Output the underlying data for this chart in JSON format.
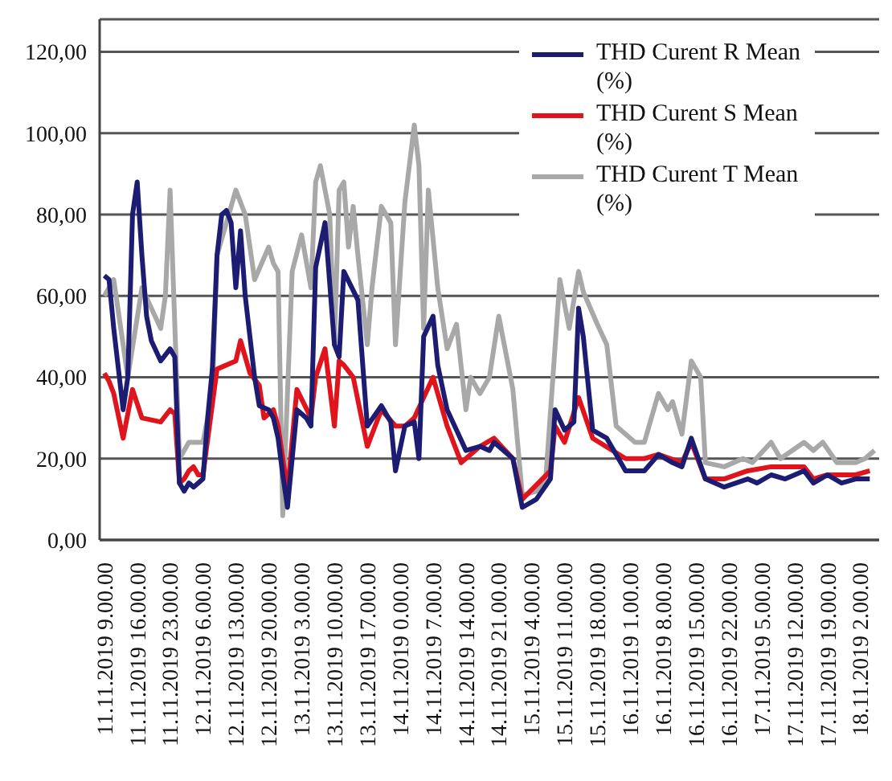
{
  "chart_data": {
    "type": "line",
    "xlim": [
      "2019-11-11T08:00",
      "2019-11-18T06:00"
    ],
    "ylim": [
      0,
      128
    ],
    "yticks": [
      {
        "value": 0,
        "label": "0,00"
      },
      {
        "value": 20,
        "label": "20,00"
      },
      {
        "value": 40,
        "label": "40,00"
      },
      {
        "value": 60,
        "label": "60,00"
      },
      {
        "value": 80,
        "label": "80,00"
      },
      {
        "value": 100,
        "label": "100,00"
      },
      {
        "value": 120,
        "label": "120,00"
      }
    ],
    "xticks": [
      {
        "value": "2019-11-11T09:00",
        "label": "11.11.2019 9.00.00"
      },
      {
        "value": "2019-11-11T16:00",
        "label": "11.11.2019 16.00.00"
      },
      {
        "value": "2019-11-11T23:00",
        "label": "11.11.2019 23.00.00"
      },
      {
        "value": "2019-11-12T06:00",
        "label": "12.11.2019 6.00.00"
      },
      {
        "value": "2019-11-12T13:00",
        "label": "12.11.2019 13.00.00"
      },
      {
        "value": "2019-11-12T20:00",
        "label": "12.11.2019 20.00.00"
      },
      {
        "value": "2019-11-13T03:00",
        "label": "13.11.2019 3.00.00"
      },
      {
        "value": "2019-11-13T10:00",
        "label": "13.11.2019 10.00.00"
      },
      {
        "value": "2019-11-13T17:00",
        "label": "13.11.2019 17.00.00"
      },
      {
        "value": "2019-11-14T00:00",
        "label": "14.11.2019 0.00.00"
      },
      {
        "value": "2019-11-14T07:00",
        "label": "14.11.2019 7.00.00"
      },
      {
        "value": "2019-11-14T14:00",
        "label": "14.11.2019 14.00.00"
      },
      {
        "value": "2019-11-14T21:00",
        "label": "14.11.2019 21.00.00"
      },
      {
        "value": "2019-11-15T04:00",
        "label": "15.11.2019 4.00.00"
      },
      {
        "value": "2019-11-15T11:00",
        "label": "15.11.2019 11.00.00"
      },
      {
        "value": "2019-11-15T18:00",
        "label": "15.11.2019 18.00.00"
      },
      {
        "value": "2019-11-16T01:00",
        "label": "16.11.2019 1.00.00"
      },
      {
        "value": "2019-11-16T08:00",
        "label": "16.11.2019 8.00.00"
      },
      {
        "value": "2019-11-16T15:00",
        "label": "16.11.2019 15.00.00"
      },
      {
        "value": "2019-11-16T22:00",
        "label": "16.11.2019 22.00.00"
      },
      {
        "value": "2019-11-17T05:00",
        "label": "17.11.2019 5.00.00"
      },
      {
        "value": "2019-11-17T12:00",
        "label": "17.11.2019 12.00.00"
      },
      {
        "value": "2019-11-17T19:00",
        "label": "17.11.2019 19.00.00"
      },
      {
        "value": "2019-11-18T02:00",
        "label": "18.11.2019 2.00.00"
      }
    ],
    "grid": "y",
    "legend": "top right",
    "series": [
      {
        "name": "THD Curent R Mean (%)",
        "color": "#1c1c72",
        "x": [
          "2019-11-11T09:00",
          "2019-11-11T10:00",
          "2019-11-11T11:00",
          "2019-11-11T13:00",
          "2019-11-11T14:00",
          "2019-11-11T15:00",
          "2019-11-11T16:00",
          "2019-11-11T17:00",
          "2019-11-11T18:00",
          "2019-11-11T19:00",
          "2019-11-11T21:00",
          "2019-11-11T23:00",
          "2019-11-12T00:00",
          "2019-11-12T01:00",
          "2019-11-12T02:00",
          "2019-11-12T03:00",
          "2019-11-12T04:00",
          "2019-11-12T05:00",
          "2019-11-12T06:00",
          "2019-11-12T07:00",
          "2019-11-12T08:00",
          "2019-11-12T09:00",
          "2019-11-12T10:00",
          "2019-11-12T11:00",
          "2019-11-12T12:00",
          "2019-11-12T13:00",
          "2019-11-12T14:00",
          "2019-11-12T15:00",
          "2019-11-12T16:00",
          "2019-11-12T17:00",
          "2019-11-12T18:00",
          "2019-11-12T20:00",
          "2019-11-12T21:00",
          "2019-11-12T22:00",
          "2019-11-12T23:00",
          "2019-11-13T00:00",
          "2019-11-13T01:00",
          "2019-11-13T02:00",
          "2019-11-13T04:00",
          "2019-11-13T05:00",
          "2019-11-13T06:00",
          "2019-11-13T08:00",
          "2019-11-13T10:00",
          "2019-11-13T11:00",
          "2019-11-13T12:00",
          "2019-11-13T15:00",
          "2019-11-13T17:00",
          "2019-11-13T20:00",
          "2019-11-13T22:00",
          "2019-11-13T23:00",
          "2019-11-14T01:00",
          "2019-11-14T03:00",
          "2019-11-14T04:00",
          "2019-11-14T05:00",
          "2019-11-14T07:00",
          "2019-11-14T08:00",
          "2019-11-14T10:00",
          "2019-11-14T12:00",
          "2019-11-14T14:00",
          "2019-11-14T17:00",
          "2019-11-14T19:00",
          "2019-11-14T20:00",
          "2019-11-15T00:00",
          "2019-11-15T02:00",
          "2019-11-15T05:00",
          "2019-11-15T08:00",
          "2019-11-15T09:00",
          "2019-11-15T11:00",
          "2019-11-15T13:00",
          "2019-11-15T14:00",
          "2019-11-15T15:00",
          "2019-11-15T17:00",
          "2019-11-15T20:00",
          "2019-11-16T00:00",
          "2019-11-16T04:00",
          "2019-11-16T07:00",
          "2019-11-16T10:00",
          "2019-11-16T12:00",
          "2019-11-16T14:00",
          "2019-11-16T17:00",
          "2019-11-16T21:00",
          "2019-11-17T02:00",
          "2019-11-17T04:00",
          "2019-11-17T07:00",
          "2019-11-17T10:00",
          "2019-11-17T14:00",
          "2019-11-17T16:00",
          "2019-11-17T19:00",
          "2019-11-17T22:00",
          "2019-11-18T01:00",
          "2019-11-18T04:00"
        ],
        "values": [
          65,
          64,
          52,
          32,
          40,
          80,
          88,
          70,
          55,
          49,
          44,
          47,
          45,
          14,
          12,
          14,
          13,
          14,
          15,
          30,
          42,
          70,
          80,
          81,
          78,
          62,
          76,
          60,
          50,
          40,
          33,
          32,
          30,
          25,
          16,
          8,
          20,
          32,
          30,
          28,
          67,
          78,
          48,
          45,
          66,
          59,
          28,
          33,
          29,
          17,
          28,
          29,
          20,
          50,
          55,
          43,
          32,
          27,
          22,
          23,
          22,
          24,
          20,
          8,
          10,
          15,
          32,
          27,
          29,
          57,
          50,
          27,
          25,
          17,
          17,
          21,
          19,
          18,
          25,
          15,
          13,
          15,
          14,
          16,
          15,
          17,
          14,
          16,
          14,
          15,
          15
        ]
      },
      {
        "name": "THD Curent S Mean (%)",
        "color": "#e0141c",
        "x": [
          "2019-11-11T09:00",
          "2019-11-11T10:00",
          "2019-11-11T11:00",
          "2019-11-11T13:00",
          "2019-11-11T15:00",
          "2019-11-11T17:00",
          "2019-11-11T21:00",
          "2019-11-11T23:00",
          "2019-11-12T00:00",
          "2019-11-12T01:00",
          "2019-11-12T02:00",
          "2019-11-12T03:00",
          "2019-11-12T04:00",
          "2019-11-12T05:00",
          "2019-11-12T06:00",
          "2019-11-12T09:00",
          "2019-11-12T13:00",
          "2019-11-12T14:00",
          "2019-11-12T15:00",
          "2019-11-12T16:00",
          "2019-11-12T18:00",
          "2019-11-12T19:00",
          "2019-11-12T21:00",
          "2019-11-12T22:00",
          "2019-11-13T00:00",
          "2019-11-13T02:00",
          "2019-11-13T05:00",
          "2019-11-13T06:00",
          "2019-11-13T08:00",
          "2019-11-13T10:00",
          "2019-11-13T11:00",
          "2019-11-13T12:00",
          "2019-11-13T14:00",
          "2019-11-13T17:00",
          "2019-11-13T20:00",
          "2019-11-13T23:00",
          "2019-11-14T01:00",
          "2019-11-14T03:00",
          "2019-11-14T07:00",
          "2019-11-14T10:00",
          "2019-11-14T13:00",
          "2019-11-14T17:00",
          "2019-11-14T20:00",
          "2019-11-15T00:00",
          "2019-11-15T02:00",
          "2019-11-15T08:00",
          "2019-11-15T09:00",
          "2019-11-15T11:00",
          "2019-11-15T14:00",
          "2019-11-15T17:00",
          "2019-11-16T00:00",
          "2019-11-16T04:00",
          "2019-11-16T07:00",
          "2019-11-16T12:00",
          "2019-11-16T14:00",
          "2019-11-16T17:00",
          "2019-11-16T21:00",
          "2019-11-17T02:00",
          "2019-11-17T07:00",
          "2019-11-17T14:00",
          "2019-11-17T16:00",
          "2019-11-17T19:00",
          "2019-11-18T01:00",
          "2019-11-18T04:00"
        ],
        "values": [
          41,
          39,
          36,
          25,
          37,
          30,
          29,
          32,
          31,
          14,
          15,
          17,
          18,
          16,
          16,
          42,
          44,
          49,
          45,
          41,
          38,
          30,
          32,
          28,
          12,
          37,
          30,
          40,
          47,
          28,
          44,
          43,
          40,
          23,
          32,
          28,
          28,
          30,
          40,
          28,
          19,
          23,
          25,
          20,
          10,
          17,
          28,
          24,
          35,
          25,
          20,
          20,
          21,
          19,
          24,
          15,
          15,
          17,
          18,
          18,
          15,
          16,
          16,
          17
        ]
      },
      {
        "name": "THD Curent T Mean (%)",
        "color": "#a8a8a8",
        "x": [
          "2019-11-11T09:00",
          "2019-11-11T11:00",
          "2019-11-11T14:00",
          "2019-11-11T17:00",
          "2019-11-11T21:00",
          "2019-11-11T22:00",
          "2019-11-11T23:00",
          "2019-11-12T01:00",
          "2019-11-12T03:00",
          "2019-11-12T06:00",
          "2019-11-12T08:00",
          "2019-11-12T09:00",
          "2019-11-12T13:00",
          "2019-11-12T15:00",
          "2019-11-12T17:00",
          "2019-11-12T20:00",
          "2019-11-12T21:00",
          "2019-11-12T22:00",
          "2019-11-12T23:00",
          "2019-11-13T01:00",
          "2019-11-13T03:00",
          "2019-11-13T05:00",
          "2019-11-13T06:00",
          "2019-11-13T07:00",
          "2019-11-13T09:00",
          "2019-11-13T10:00",
          "2019-11-13T11:00",
          "2019-11-13T12:00",
          "2019-11-13T13:00",
          "2019-11-13T14:00",
          "2019-11-13T15:00",
          "2019-11-13T17:00",
          "2019-11-13T18:00",
          "2019-11-13T20:00",
          "2019-11-13T22:00",
          "2019-11-13T23:00",
          "2019-11-14T01:00",
          "2019-11-14T03:00",
          "2019-11-14T04:00",
          "2019-11-14T05:00",
          "2019-11-14T06:00",
          "2019-11-14T08:00",
          "2019-11-14T10:00",
          "2019-11-14T12:00",
          "2019-11-14T14:00",
          "2019-11-14T15:00",
          "2019-11-14T17:00",
          "2019-11-14T19:00",
          "2019-11-14T21:00",
          "2019-11-15T00:00",
          "2019-11-15T02:00",
          "2019-11-15T05:00",
          "2019-11-15T07:00",
          "2019-11-15T10:00",
          "2019-11-15T12:00",
          "2019-11-15T14:00",
          "2019-11-15T15:00",
          "2019-11-15T18:00",
          "2019-11-15T20:00",
          "2019-11-15T22:00",
          "2019-11-16T02:00",
          "2019-11-16T04:00",
          "2019-11-16T07:00",
          "2019-11-16T09:00",
          "2019-11-16T10:00",
          "2019-11-16T12:00",
          "2019-11-16T14:00",
          "2019-11-16T16:00",
          "2019-11-16T17:00",
          "2019-11-16T21:00",
          "2019-11-17T01:00",
          "2019-11-17T03:00",
          "2019-11-17T07:00",
          "2019-11-17T09:00",
          "2019-11-17T14:00",
          "2019-11-17T16:00",
          "2019-11-17T18:00",
          "2019-11-17T21:00",
          "2019-11-18T01:00",
          "2019-11-18T03:00",
          "2019-11-18T05:00"
        ],
        "values": [
          60,
          64,
          40,
          62,
          52,
          60,
          86,
          20,
          24,
          24,
          36,
          70,
          86,
          80,
          64,
          72,
          68,
          66,
          6,
          66,
          75,
          62,
          88,
          92,
          80,
          48,
          86,
          88,
          72,
          82,
          70,
          48,
          62,
          82,
          78,
          48,
          83,
          102,
          92,
          52,
          86,
          62,
          47,
          53,
          32,
          40,
          36,
          40,
          55,
          37,
          11,
          12,
          15,
          64,
          52,
          66,
          61,
          53,
          48,
          28,
          24,
          24,
          36,
          32,
          34,
          26,
          44,
          40,
          19,
          18,
          20,
          19,
          24,
          20,
          24,
          22,
          24,
          19,
          19,
          20,
          22
        ]
      }
    ]
  }
}
